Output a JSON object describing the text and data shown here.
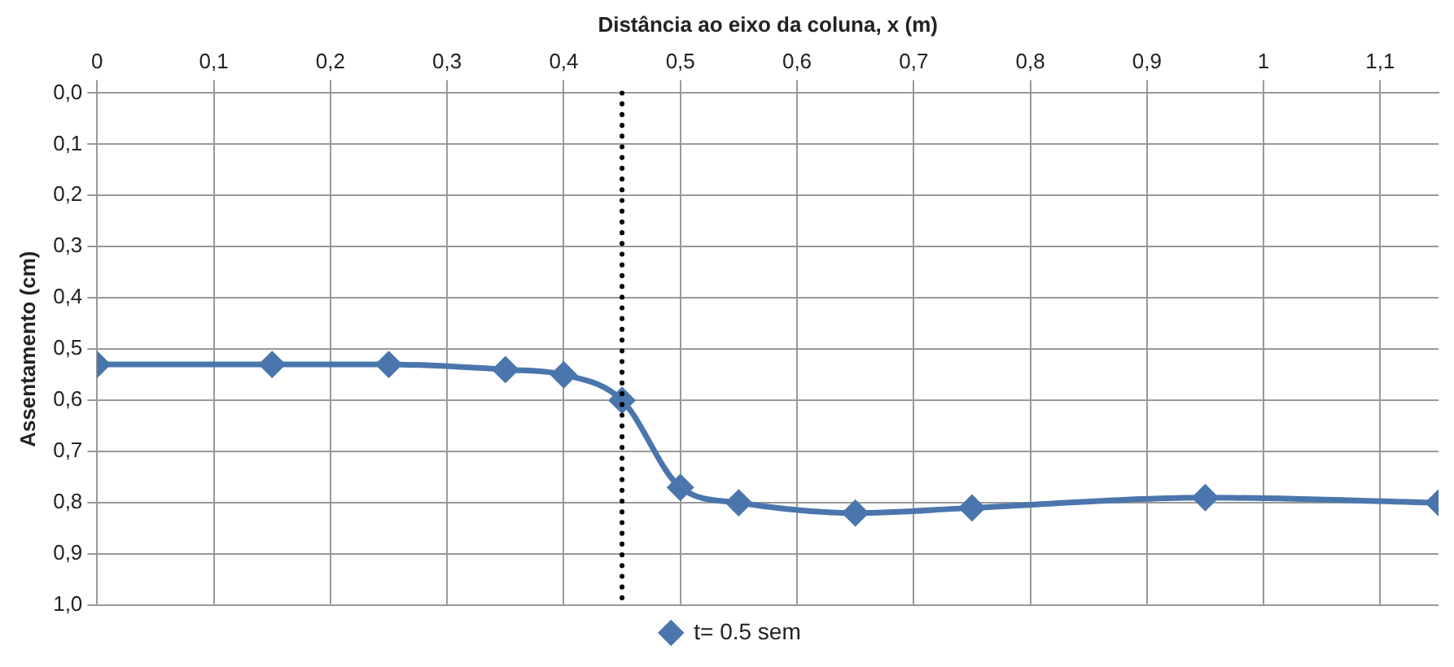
{
  "chart_data": {
    "type": "line",
    "xlabel": "Distância ao eixo da coluna, x (m)",
    "ylabel": "Assentamento (cm)",
    "x": [
      0,
      0.15,
      0.25,
      0.35,
      0.4,
      0.45,
      0.5,
      0.55,
      0.65,
      0.75,
      0.95,
      1.15
    ],
    "series": [
      {
        "name": "t= 0.5 sem",
        "color": "#4a76ad",
        "values": [
          0.53,
          0.53,
          0.53,
          0.54,
          0.55,
          0.6,
          0.77,
          0.8,
          0.82,
          0.81,
          0.79,
          0.8
        ]
      }
    ],
    "xlim": [
      0,
      1.15
    ],
    "xticks": [
      0,
      {
        "value": 0.1,
        "label": "0,1"
      },
      {
        "value": 0.2,
        "label": "0,2"
      },
      {
        "value": 0.3,
        "label": "0,3"
      },
      {
        "value": 0.4,
        "label": "0,4"
      },
      {
        "value": 0.5,
        "label": "0,5"
      },
      {
        "value": 0.6,
        "label": "0,6"
      },
      {
        "value": 0.7,
        "label": "0,7"
      },
      {
        "value": 0.8,
        "label": "0,8"
      },
      {
        "value": 0.9,
        "label": "0,9"
      },
      1,
      {
        "value": 1.1,
        "label": "1,1"
      }
    ],
    "ylim": [
      1,
      0
    ],
    "yticks": [
      {
        "value": 0,
        "label": "0,0"
      },
      {
        "value": 0.1,
        "label": "0,1"
      },
      {
        "value": 0.2,
        "label": "0,2"
      },
      {
        "value": 0.3,
        "label": "0,3"
      },
      {
        "value": 0.4,
        "label": "0,4"
      },
      {
        "value": 0.5,
        "label": "0,5"
      },
      {
        "value": 0.6,
        "label": "0,6"
      },
      {
        "value": 0.7,
        "label": "0,7"
      },
      {
        "value": 0.8,
        "label": "0,8"
      },
      {
        "value": 0.9,
        "label": "0,9"
      },
      {
        "value": 1,
        "label": "1,0"
      }
    ],
    "ref_lines": [
      {
        "axis": "x",
        "value": 0.45,
        "color": "#000000",
        "line_style": "dotted"
      }
    ],
    "grid": true,
    "legend": "bottom",
    "marker": "diamond",
    "line_style": "solid"
  }
}
